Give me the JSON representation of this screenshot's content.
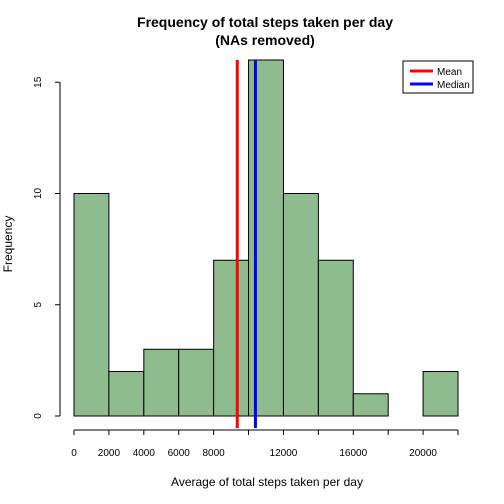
{
  "chart_data": {
    "type": "bar",
    "title_line1": "Frequency of total steps taken per day",
    "title_line2": "(NAs removed)",
    "xlabel": "Average of total steps taken per day",
    "ylabel": "Frequency",
    "bin_edges": [
      0,
      2000,
      4000,
      6000,
      8000,
      10000,
      12000,
      14000,
      16000,
      18000,
      20000,
      22000
    ],
    "values": [
      10,
      2,
      3,
      3,
      7,
      16,
      10,
      7,
      1,
      0,
      2
    ],
    "xlim": [
      0,
      22000
    ],
    "ylim": [
      0,
      16
    ],
    "x_tick_values": [
      0,
      2000,
      4000,
      6000,
      8000,
      12000,
      16000,
      20000
    ],
    "x_tick_labels": [
      "0",
      "2000",
      "4000",
      "6000",
      "8000",
      "12000",
      "16000",
      "20000"
    ],
    "y_ticks": [
      0,
      5,
      10,
      15
    ],
    "y_tick_labels": [
      "0",
      "5",
      "10",
      "15"
    ],
    "bar_color": "#8FBC8F",
    "bar_border_color": "#000000",
    "reference_lines": [
      {
        "name": "Mean",
        "value": 9354,
        "color": "#FF0000"
      },
      {
        "name": "Median",
        "value": 10395,
        "color": "#0000FF"
      }
    ],
    "legend_position": "top-right",
    "grid": false
  }
}
